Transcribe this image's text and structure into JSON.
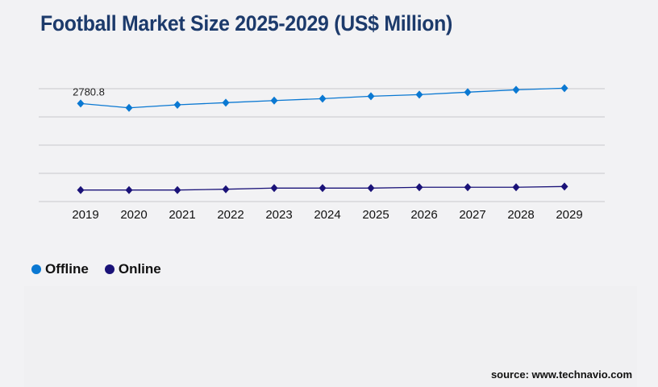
{
  "title": "Football Market Size 2025-2029 (US$ Million)",
  "source": "source: www.technavio.com",
  "chart_data": {
    "type": "line",
    "title": "Football Market Size 2025-2029 (US$ Million)",
    "categories": [
      "2019",
      "2020",
      "2021",
      "2022",
      "2023",
      "2024",
      "2025",
      "2026",
      "2027",
      "2028",
      "2029"
    ],
    "ylim": [
      0,
      3200
    ],
    "grid": true,
    "legend_placement": "bottom-left",
    "series": [
      {
        "name": "Offline",
        "color": "#0a78d2",
        "values": [
          2780.8,
          2657,
          2742,
          2804,
          2863,
          2918,
          2986,
          3032,
          3101,
          3169,
          3215
        ]
      },
      {
        "name": "Online",
        "color": "#1a1278",
        "values": [
          327,
          327,
          327,
          350,
          382,
          382,
          382,
          405,
          405,
          405,
          427
        ]
      }
    ],
    "data_labels": [
      {
        "series": "Offline",
        "category": "2019",
        "text": "2780.8"
      }
    ]
  }
}
